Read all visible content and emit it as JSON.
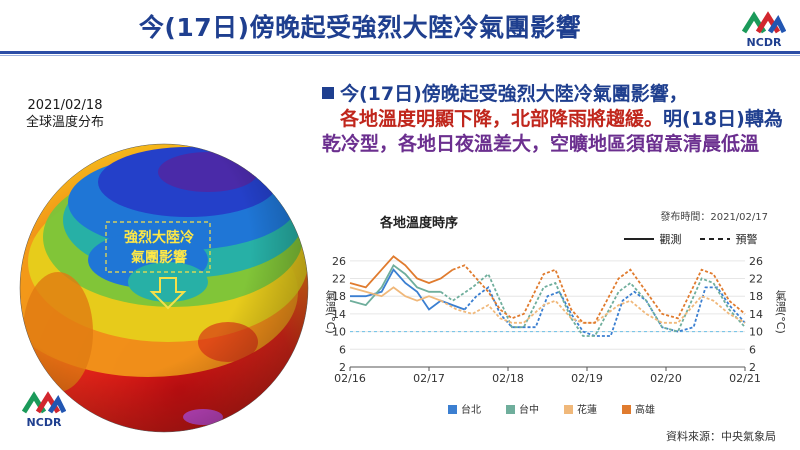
{
  "header": {
    "title": "今(17日)傍晚起受強烈大陸冷氣團影響",
    "logo_text": "NCDR"
  },
  "globe": {
    "date": "2021/02/18",
    "caption": "全球溫度分布",
    "annotation_line1": "強烈大陸冷",
    "annotation_line2": "氣團影響"
  },
  "bullet": {
    "part1": "今(17日)傍晚起受強烈大陸冷氣團影響，",
    "part2": "各地溫度明顯下降，北部降雨將趨緩。",
    "part3": "明(18日)轉為",
    "part4": "乾冷型，各地日夜溫差大，空曠地區須留意清晨低溫"
  },
  "chart_data": {
    "type": "line",
    "title": "各地溫度時序",
    "published": "發布時間：2021/02/17",
    "source": "資料來源：中央氣象局",
    "ylabel_left": "氣溫(°C)",
    "ylabel_right": "氣溫(°C)",
    "legend_observed": "觀測",
    "legend_forecast": "預警",
    "x_ticks": [
      "02/16",
      "02/17",
      "02/18",
      "02/19",
      "02/20",
      "02/21"
    ],
    "y_ticks": [
      2,
      6,
      10,
      14,
      18,
      22,
      26
    ],
    "ylim": [
      2,
      28
    ],
    "reference_line": 10,
    "series": [
      {
        "name": "台北",
        "color": "#3b7fd1",
        "observed": [
          [
            0,
            18
          ],
          [
            0.2,
            18
          ],
          [
            0.4,
            19
          ],
          [
            0.55,
            24
          ],
          [
            0.7,
            21
          ],
          [
            0.85,
            19
          ],
          [
            1.0,
            15
          ],
          [
            1.15,
            17
          ],
          [
            1.3,
            16
          ],
          [
            1.45,
            15
          ]
        ],
        "forecast": [
          [
            1.45,
            15
          ],
          [
            1.6,
            18
          ],
          [
            1.75,
            20
          ],
          [
            1.9,
            14
          ],
          [
            2.05,
            11
          ],
          [
            2.2,
            11
          ],
          [
            2.35,
            11
          ],
          [
            2.5,
            18
          ],
          [
            2.65,
            19
          ],
          [
            2.8,
            14
          ],
          [
            2.95,
            10
          ],
          [
            3.1,
            9
          ],
          [
            3.3,
            9
          ],
          [
            3.45,
            17
          ],
          [
            3.6,
            19
          ],
          [
            3.75,
            17
          ],
          [
            3.95,
            11
          ],
          [
            4.15,
            10
          ],
          [
            4.35,
            11
          ],
          [
            4.5,
            20
          ],
          [
            4.65,
            20
          ],
          [
            4.8,
            16
          ],
          [
            5.0,
            12
          ]
        ]
      },
      {
        "name": "台中",
        "color": "#6fae9c",
        "observed": [
          [
            0,
            17
          ],
          [
            0.2,
            16
          ],
          [
            0.4,
            20
          ],
          [
            0.55,
            25
          ],
          [
            0.7,
            23
          ],
          [
            0.85,
            20
          ],
          [
            1.0,
            19
          ],
          [
            1.15,
            19
          ]
        ],
        "forecast": [
          [
            1.15,
            19
          ],
          [
            1.3,
            17
          ],
          [
            1.55,
            20
          ],
          [
            1.75,
            23
          ],
          [
            1.9,
            17
          ],
          [
            2.05,
            11
          ],
          [
            2.2,
            11
          ],
          [
            2.45,
            20
          ],
          [
            2.6,
            21
          ],
          [
            2.8,
            13
          ],
          [
            2.95,
            9
          ],
          [
            3.1,
            9
          ],
          [
            3.4,
            19
          ],
          [
            3.55,
            21
          ],
          [
            3.75,
            17
          ],
          [
            3.95,
            11
          ],
          [
            4.15,
            10
          ],
          [
            4.45,
            22
          ],
          [
            4.6,
            21
          ],
          [
            4.8,
            15
          ],
          [
            5.0,
            11
          ]
        ]
      },
      {
        "name": "花蓮",
        "color": "#f0b87a",
        "observed": [
          [
            0,
            20
          ],
          [
            0.2,
            19
          ],
          [
            0.4,
            18
          ],
          [
            0.55,
            20
          ],
          [
            0.7,
            18
          ],
          [
            0.85,
            17
          ],
          [
            1.0,
            18
          ],
          [
            1.15,
            17
          ]
        ],
        "forecast": [
          [
            1.15,
            17
          ],
          [
            1.35,
            15
          ],
          [
            1.55,
            14
          ],
          [
            1.75,
            16
          ],
          [
            1.9,
            13
          ],
          [
            2.05,
            12
          ],
          [
            2.2,
            12
          ],
          [
            2.45,
            16
          ],
          [
            2.6,
            17
          ],
          [
            2.8,
            13
          ],
          [
            2.95,
            12
          ],
          [
            3.1,
            12
          ],
          [
            3.4,
            16
          ],
          [
            3.55,
            17
          ],
          [
            3.75,
            14
          ],
          [
            3.95,
            12
          ],
          [
            4.15,
            12
          ],
          [
            4.45,
            18
          ],
          [
            4.6,
            17
          ],
          [
            4.8,
            14
          ],
          [
            5.0,
            12
          ]
        ]
      },
      {
        "name": "高雄",
        "color": "#e07b2e",
        "observed": [
          [
            0,
            21
          ],
          [
            0.2,
            20
          ],
          [
            0.4,
            24
          ],
          [
            0.55,
            27
          ],
          [
            0.7,
            25
          ],
          [
            0.85,
            22
          ],
          [
            1.0,
            21
          ],
          [
            1.15,
            22
          ],
          [
            1.3,
            24
          ]
        ],
        "forecast": [
          [
            1.3,
            24
          ],
          [
            1.45,
            25
          ],
          [
            1.6,
            22
          ],
          [
            1.75,
            19
          ],
          [
            1.9,
            15
          ],
          [
            2.05,
            13
          ],
          [
            2.2,
            14
          ],
          [
            2.45,
            23
          ],
          [
            2.6,
            24
          ],
          [
            2.8,
            15
          ],
          [
            2.95,
            12
          ],
          [
            3.1,
            12
          ],
          [
            3.4,
            22
          ],
          [
            3.55,
            24
          ],
          [
            3.75,
            19
          ],
          [
            3.95,
            14
          ],
          [
            4.15,
            13
          ],
          [
            4.45,
            24
          ],
          [
            4.6,
            23
          ],
          [
            4.8,
            17
          ],
          [
            5.0,
            14
          ]
        ]
      }
    ]
  }
}
